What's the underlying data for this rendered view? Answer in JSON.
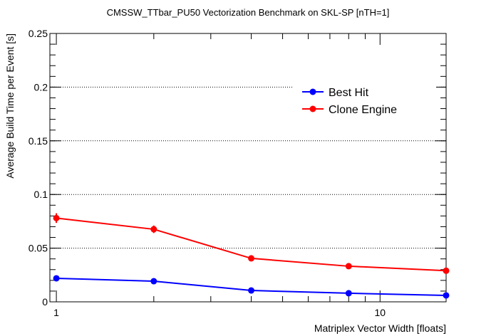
{
  "chart_data": {
    "type": "line",
    "title": "CMSSW_TTbar_PU50 Vectorization Benchmark on SKL-SP [nTH=1]",
    "xlabel": "Matriplex Vector Width [floats]",
    "ylabel": "Average Build Time per Event [s]",
    "xscale": "log",
    "xlim": [
      0.955,
      16
    ],
    "ylim": [
      0,
      0.25
    ],
    "x_tick_labels": [
      "1",
      "10"
    ],
    "y_tick_labels": [
      "0",
      "0.05",
      "0.1",
      "0.15",
      "0.2",
      "0.25"
    ],
    "grid": "horizontal dotted",
    "legend_position": "top-right",
    "x": [
      1,
      2,
      4,
      8,
      16
    ],
    "series": [
      {
        "name": "Best Hit",
        "color": "#0000ff",
        "values": [
          0.0219,
          0.0192,
          0.0106,
          0.008,
          0.006
        ],
        "errors": [
          0.001,
          0.001,
          0.0008,
          0.0006,
          0.0005
        ]
      },
      {
        "name": "Clone Engine",
        "color": "#ff0000",
        "values": [
          0.078,
          0.0676,
          0.0405,
          0.0332,
          0.029
        ],
        "errors": [
          0.0045,
          0.0035,
          0.001,
          0.0008,
          0.0007
        ]
      }
    ]
  }
}
